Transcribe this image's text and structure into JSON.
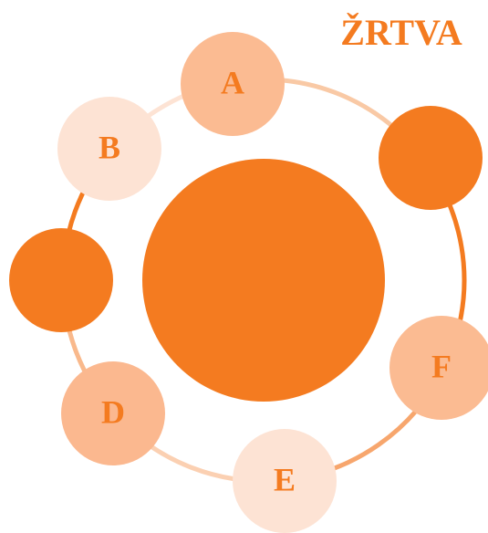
{
  "title": "ŽRTVA",
  "nodes": [
    {
      "label": "A"
    },
    {
      "label": "B"
    },
    {
      "label": "D"
    },
    {
      "label": "E"
    },
    {
      "label": "F"
    }
  ]
}
